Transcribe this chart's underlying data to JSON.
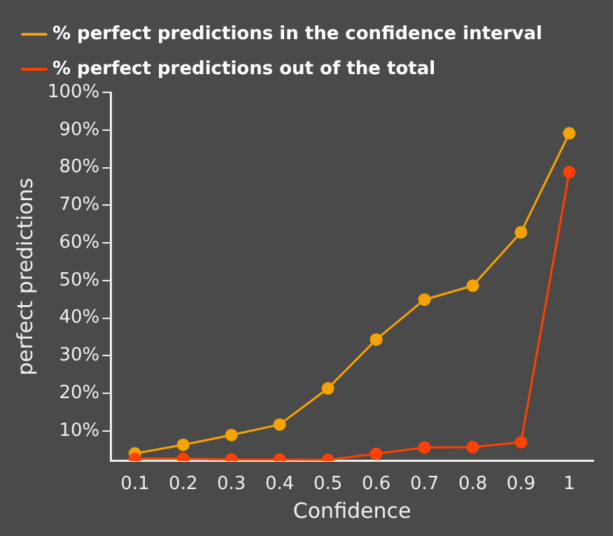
{
  "chart_data": {
    "type": "line",
    "xlabel": "Confidence",
    "ylabel": "perfect predictions",
    "categories": [
      "0.1",
      "0.2",
      "0.3",
      "0.4",
      "0.5",
      "0.6",
      "0.7",
      "0.8",
      "0.9",
      "1"
    ],
    "series": [
      {
        "name": "% perfect predictions in the confidence interval",
        "color": "#f5a300",
        "values": [
          4.0,
          6.3,
          8.9,
          11.7,
          21.3,
          34.3,
          44.9,
          48.6,
          62.8,
          89.1
        ]
      },
      {
        "name": "% perfect predictions out of the total",
        "color": "#ff4000",
        "values": [
          2.6,
          2.6,
          2.4,
          2.4,
          2.3,
          3.9,
          5.6,
          5.7,
          7.0,
          78.8
        ]
      }
    ],
    "ylim": [
      2,
      100
    ],
    "yticks": [
      {
        "value": 10,
        "label": "10%"
      },
      {
        "value": 20,
        "label": "20%"
      },
      {
        "value": 30,
        "label": "30%"
      },
      {
        "value": 40,
        "label": "40%"
      },
      {
        "value": 50,
        "label": "50%"
      },
      {
        "value": 60,
        "label": "60%"
      },
      {
        "value": 70,
        "label": "70%"
      },
      {
        "value": 80,
        "label": "80%"
      },
      {
        "value": 90,
        "label": "90%"
      },
      {
        "value": 100,
        "label": "100%"
      }
    ],
    "grid": false,
    "legend": "top left",
    "marker": "circle",
    "line_style": "solid"
  }
}
